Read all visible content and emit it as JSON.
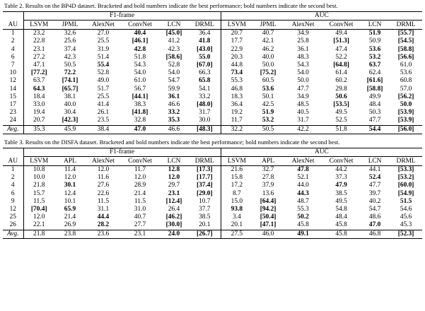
{
  "table2": {
    "caption": "Table 2. Results on the BP4D dataset. Bracketed and bold numbers indicate the best performance; bold numbers indicate the second best.",
    "group_f1": "F1-frame",
    "group_auc": "AUC",
    "headers": [
      "AU",
      "LSVM",
      "JPML",
      "AlexNet",
      "ConvNet",
      "LCN",
      "DRML",
      "LSVM",
      "JPML",
      "AlexNet",
      "ConvNet",
      "LCN",
      "DRML"
    ],
    "rows": [
      [
        "1",
        "23.2",
        "32.6",
        "27.0",
        "**40.4",
        "[45.0]",
        "36.4",
        "20.7",
        "40.7",
        "34.9",
        "49.4",
        "**51.9",
        "[55.7]"
      ],
      [
        "2",
        "22.8",
        "25.6",
        "25.5",
        "[46.1]",
        "41.2",
        "**41.8",
        "17.7",
        "42.1",
        "25.8",
        "[51.3]",
        "50.9",
        "[54.5]"
      ],
      [
        "4",
        "23.1",
        "37.4",
        "31.9",
        "**42.8",
        "42.3",
        "[43.0]",
        "22.9",
        "46.2",
        "36.1",
        "47.4",
        "**53.6",
        "[58.8]"
      ],
      [
        "6",
        "27.2",
        "42.3",
        "51.4",
        "51.8",
        "[58.6]",
        "**55.0",
        "20.3",
        "40.0",
        "48.3",
        "52.2",
        "**53.2",
        "[56.6]"
      ],
      [
        "7",
        "47.1",
        "50.5",
        "**55.4",
        "54.3",
        "52.8",
        "[67.0]",
        "44.8",
        "50.0",
        "54.3",
        "[64.8]",
        "**63.7",
        "61.0"
      ],
      [
        "10",
        "[77.2]",
        "**72.2",
        "52.8",
        "54.0",
        "54.0",
        "66.3",
        "**73.4",
        "[75.2]",
        "54.0",
        "61.4",
        "62.4",
        "53.6"
      ],
      [
        "12",
        "63.7",
        "[74.1]",
        "49.0",
        "61.0",
        "54.7",
        "**65.8",
        "55.3",
        "60.5",
        "50.0",
        "60.2",
        "[61.6]",
        "60.8"
      ],
      [
        "14",
        "**64.3",
        "[65.7]",
        "51.7",
        "56.7",
        "59.9",
        "54.1",
        "46.8",
        "**53.6",
        "47.7",
        "29.8",
        "[58.8]",
        "57.0"
      ],
      [
        "15",
        "18.4",
        "38.1",
        "25.5",
        "[44.1]",
        "**36.1",
        "33.2",
        "18.3",
        "50.1",
        "34.9",
        "**50.6",
        "49.9",
        "[56.2]"
      ],
      [
        "17",
        "33.0",
        "40.0",
        "41.4",
        "38.3",
        "46.6",
        "[48.0]",
        "36.4",
        "42.5",
        "48.5",
        "[53.5]",
        "48.4",
        "**50.0"
      ],
      [
        "23",
        "19.4",
        "30.4",
        "26.1",
        "[41.8]",
        "**33.2",
        "31.7",
        "19.2",
        "**51.9",
        "40.5",
        "49.5",
        "50.3",
        "[53.9]"
      ],
      [
        "24",
        "20.7",
        "[42.3]",
        "23.5",
        "32.8",
        "**35.3",
        "30.0",
        "11.7",
        "**53.2",
        "31.7",
        "52.5",
        "47.7",
        "[53.9]"
      ]
    ],
    "avg_row": [
      "Avg.",
      "35.3",
      "45.9",
      "38.4",
      "**47.0",
      "46.6",
      "[48.3]",
      "32.2",
      "50.5",
      "42.2",
      "51.8",
      "**54.4",
      "[56.0]"
    ]
  },
  "table3": {
    "caption": "Table 3. Results on the DISFA dataset. Bracketed and bold numbers indicate the best performance; bold numbers indicate the second best.",
    "group_f1": "F1-frame",
    "group_auc": "AUC",
    "headers": [
      "AU",
      "LSVM",
      "APL",
      "AlexNet",
      "ConvNet",
      "LCN",
      "DRML",
      "LSVM",
      "APL",
      "AlexNet",
      "ConvNet",
      "LCN",
      "DRML"
    ],
    "rows": [
      [
        "1",
        "10.8",
        "11.4",
        "12.0",
        "11.7",
        "**12.8",
        "[17.3]",
        "21.6",
        "32.7",
        "**47.8",
        "44.2",
        "44.1",
        "[53.3]"
      ],
      [
        "2",
        "10.0",
        "12.0",
        "11.6",
        "12.0",
        "**12.0",
        "[17.7]",
        "15.8",
        "27.8",
        "52.1",
        "37.3",
        "**52.4",
        "[53.2]"
      ],
      [
        "4",
        "21.8",
        "**30.1",
        "27.6",
        "28.9",
        "29.7",
        "[37.4]",
        "17.2",
        "37.9",
        "44.0",
        "**47.9",
        "47.7",
        "[60.0]"
      ],
      [
        "6",
        "15.7",
        "12.4",
        "22.6",
        "21.4",
        "**23.1",
        "[29.0]",
        "8.7",
        "13.6",
        "**44.3",
        "38.5",
        "39.7",
        "[54.9]"
      ],
      [
        "9",
        "11.5",
        "10.1",
        "11.5",
        "11.5",
        "[12.4]",
        "10.7",
        "15.0",
        "[64.4]",
        "48.7",
        "49.5",
        "40.2",
        "**51.5"
      ],
      [
        "12",
        "[70.4]",
        "**65.9",
        "31.1",
        "31.0",
        "26.4",
        "37.7",
        "**93.8",
        "[94.2]",
        "55.3",
        "54.8",
        "54.7",
        "54.6"
      ],
      [
        "25",
        "12.0",
        "21.4",
        "**44.4",
        "40.7",
        "[46.2]",
        "38.5",
        "3.4",
        "[50.4]",
        "**50.2",
        "48.4",
        "48.6",
        "45.6"
      ],
      [
        "26",
        "22.1",
        "26.9",
        "**28.2",
        "27.7",
        "[30.0]",
        "20.1",
        "20.1",
        "[47.1]",
        "45.8",
        "45.8",
        "**47.0",
        "45.3"
      ]
    ],
    "avg_row": [
      "Avg.",
      "21.8",
      "23.8",
      "23.6",
      "23.1",
      "**24.0",
      "[26.7]",
      "27.5",
      "46.0",
      "**49.1",
      "45.8",
      "46.8",
      "[52.3]"
    ]
  }
}
